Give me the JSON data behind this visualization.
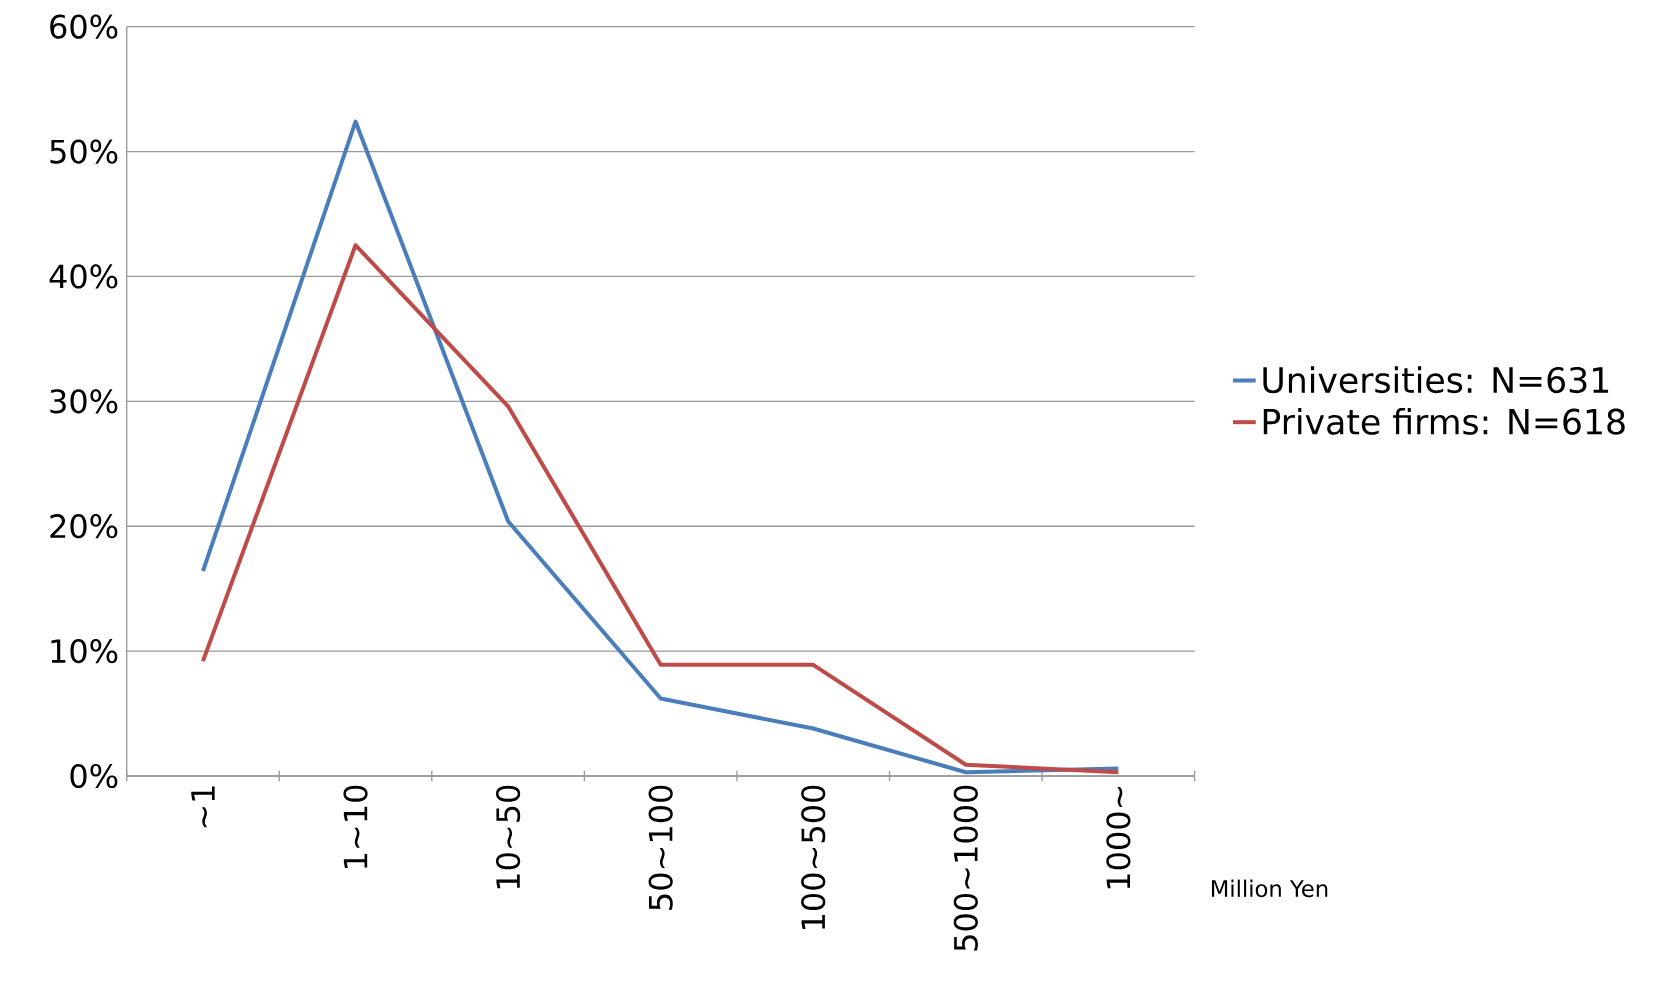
{
  "chart_data": {
    "type": "line",
    "xlabel": "Million Yen",
    "categories": [
      "~1",
      "1~10",
      "10~50",
      "50~100",
      "100~500",
      "500~1000",
      "1000~"
    ],
    "series": [
      {
        "name": "Universities: N=631",
        "color": "#4a7ebb",
        "values": [
          16.4,
          52.4,
          20.4,
          6.2,
          3.8,
          0.3,
          0.6
        ]
      },
      {
        "name": "Private firms: N=618",
        "color": "#be4b48",
        "values": [
          9.2,
          42.5,
          29.6,
          8.9,
          8.9,
          0.9,
          0.3
        ]
      }
    ],
    "ylim": [
      0,
      60
    ],
    "yticks": [
      {
        "value": 0,
        "label": "0%"
      },
      {
        "value": 10,
        "label": "10%"
      },
      {
        "value": 20,
        "label": "20%"
      },
      {
        "value": 30,
        "label": "30%"
      },
      {
        "value": 40,
        "label": "40%"
      },
      {
        "value": 50,
        "label": "50%"
      },
      {
        "value": 60,
        "label": "60%"
      }
    ],
    "grid": "y",
    "legend": "right",
    "marker": "none",
    "line_style": "solid"
  }
}
